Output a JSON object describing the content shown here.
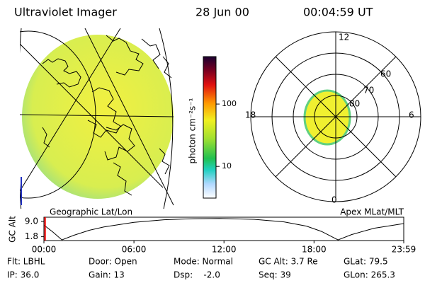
{
  "header": {
    "title": "Ultraviolet Imager",
    "date": "28 Jun 00",
    "time": "00:04:59 UT"
  },
  "colorbar": {
    "label": "photon cm⁻²s⁻¹",
    "scale": "log",
    "lim": [
      3.1,
      577
    ],
    "ticks": [
      10,
      100
    ]
  },
  "left_panel": {
    "label": "Geographic Lat/Lon"
  },
  "right_panel": {
    "label": "Apex MLat/MLT",
    "mlt_labels": [
      "12",
      "6",
      "0",
      "18"
    ],
    "lat_labels": [
      "60",
      "70",
      "80"
    ]
  },
  "chart_data": {
    "type": "line",
    "ylabel": "GC Alt",
    "color": "#000000",
    "x": [
      0,
      0.6,
      1.2,
      2,
      3,
      4,
      6,
      8,
      10,
      11.7,
      14,
      16,
      17.5,
      18.5,
      19.6,
      20.5,
      22,
      23.98
    ],
    "values": [
      7.3,
      4,
      0.3,
      2.5,
      4.8,
      6.4,
      8.6,
      9.8,
      10.3,
      10.4,
      10,
      8.8,
      6.8,
      4.3,
      0.3,
      2.8,
      5.8,
      8
    ],
    "xlim": [
      0,
      23.98
    ],
    "ylim": [
      0,
      11
    ],
    "xticks": [
      {
        "value": 0,
        "label": "00:00"
      },
      {
        "value": 6,
        "label": "06:00"
      },
      {
        "value": 12,
        "label": "12:00"
      },
      {
        "value": 18,
        "label": "18:00"
      },
      {
        "value": 23.98,
        "label": "23:59"
      }
    ],
    "yticks": [
      {
        "value": 9,
        "label": "9.0"
      },
      {
        "value": 1.8,
        "label": "1.8"
      }
    ],
    "current_time": 0.08,
    "marker_color": "#ff0000"
  },
  "footer": {
    "rows": [
      [
        "Flt: LBHL",
        "Door: Open",
        "Mode: Normal",
        "GC Alt: 3.7 Re",
        "GLat: 79.5"
      ],
      [
        "IP: 36.0",
        "Gain: 13",
        "Dsp:    -2.0",
        "Seq: 39",
        "GLon: 265.3"
      ]
    ]
  }
}
